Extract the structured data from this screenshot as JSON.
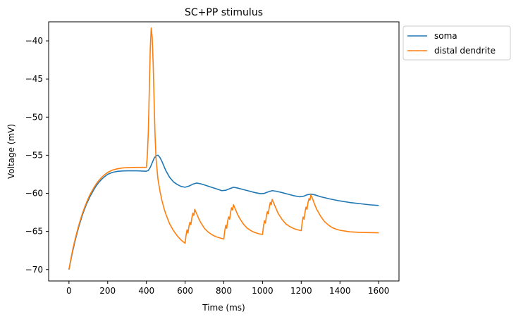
{
  "chart_data": {
    "type": "line",
    "title": "SC+PP stimulus",
    "xlabel": "Time (ms)",
    "ylabel": "Voltage (mV)",
    "xlim": [
      -105,
      1705
    ],
    "ylim": [
      -71.5,
      -37.5
    ],
    "xticks": [
      0,
      200,
      400,
      600,
      800,
      1000,
      1200,
      1400,
      1600
    ],
    "yticks": [
      -70,
      -65,
      -60,
      -55,
      -50,
      -45,
      -40
    ],
    "grid": false,
    "legend_placement": "outside-top-right",
    "series": [
      {
        "name": "soma",
        "color": "#1f77b4",
        "points": [
          [
            0,
            -70.0
          ],
          [
            10,
            -68.7
          ],
          [
            20,
            -67.5
          ],
          [
            30,
            -66.4
          ],
          [
            40,
            -65.4
          ],
          [
            50,
            -64.45
          ],
          [
            60,
            -63.6
          ],
          [
            70,
            -62.8
          ],
          [
            80,
            -62.1
          ],
          [
            90,
            -61.45
          ],
          [
            100,
            -60.9
          ],
          [
            110,
            -60.35
          ],
          [
            120,
            -59.9
          ],
          [
            130,
            -59.45
          ],
          [
            140,
            -59.05
          ],
          [
            150,
            -58.7
          ],
          [
            160,
            -58.4
          ],
          [
            170,
            -58.13
          ],
          [
            180,
            -57.9
          ],
          [
            190,
            -57.7
          ],
          [
            200,
            -57.5
          ],
          [
            225,
            -57.25
          ],
          [
            250,
            -57.12
          ],
          [
            275,
            -57.07
          ],
          [
            300,
            -57.05
          ],
          [
            350,
            -57.05
          ],
          [
            380,
            -57.08
          ],
          [
            400,
            -57.1
          ],
          [
            410,
            -57.0
          ],
          [
            420,
            -56.6
          ],
          [
            430,
            -56.0
          ],
          [
            440,
            -55.4
          ],
          [
            450,
            -55.05
          ],
          [
            460,
            -55.0
          ],
          [
            470,
            -55.3
          ],
          [
            480,
            -55.8
          ],
          [
            490,
            -56.4
          ],
          [
            500,
            -57.0
          ],
          [
            520,
            -57.9
          ],
          [
            540,
            -58.5
          ],
          [
            560,
            -58.85
          ],
          [
            580,
            -59.1
          ],
          [
            600,
            -59.2
          ],
          [
            620,
            -59.05
          ],
          [
            640,
            -58.8
          ],
          [
            660,
            -58.65
          ],
          [
            680,
            -58.75
          ],
          [
            700,
            -58.9
          ],
          [
            730,
            -59.15
          ],
          [
            760,
            -59.4
          ],
          [
            790,
            -59.65
          ],
          [
            810,
            -59.6
          ],
          [
            830,
            -59.4
          ],
          [
            850,
            -59.2
          ],
          [
            870,
            -59.3
          ],
          [
            900,
            -59.5
          ],
          [
            930,
            -59.7
          ],
          [
            960,
            -59.9
          ],
          [
            990,
            -60.05
          ],
          [
            1010,
            -60.0
          ],
          [
            1030,
            -59.8
          ],
          [
            1050,
            -59.65
          ],
          [
            1070,
            -59.72
          ],
          [
            1100,
            -59.9
          ],
          [
            1130,
            -60.1
          ],
          [
            1160,
            -60.3
          ],
          [
            1190,
            -60.45
          ],
          [
            1210,
            -60.4
          ],
          [
            1230,
            -60.2
          ],
          [
            1250,
            -60.1
          ],
          [
            1270,
            -60.2
          ],
          [
            1300,
            -60.45
          ],
          [
            1350,
            -60.75
          ],
          [
            1400,
            -61.0
          ],
          [
            1450,
            -61.2
          ],
          [
            1500,
            -61.35
          ],
          [
            1550,
            -61.5
          ],
          [
            1600,
            -61.6
          ]
        ]
      },
      {
        "name": "distal dendrite",
        "color": "#ff7f0e",
        "points": [
          [
            0,
            -70.0
          ],
          [
            10,
            -68.6
          ],
          [
            20,
            -67.3
          ],
          [
            30,
            -66.2
          ],
          [
            40,
            -65.2
          ],
          [
            50,
            -64.25
          ],
          [
            60,
            -63.4
          ],
          [
            70,
            -62.6
          ],
          [
            80,
            -61.9
          ],
          [
            90,
            -61.25
          ],
          [
            100,
            -60.65
          ],
          [
            110,
            -60.1
          ],
          [
            120,
            -59.65
          ],
          [
            130,
            -59.2
          ],
          [
            140,
            -58.8
          ],
          [
            150,
            -58.45
          ],
          [
            160,
            -58.15
          ],
          [
            170,
            -57.88
          ],
          [
            180,
            -57.65
          ],
          [
            190,
            -57.45
          ],
          [
            200,
            -57.25
          ],
          [
            225,
            -56.95
          ],
          [
            250,
            -56.78
          ],
          [
            275,
            -56.68
          ],
          [
            300,
            -56.63
          ],
          [
            350,
            -56.6
          ],
          [
            390,
            -56.6
          ],
          [
            400,
            -56.6
          ],
          [
            405,
            -55.0
          ],
          [
            410,
            -52.0
          ],
          [
            415,
            -46.5
          ],
          [
            420,
            -41.0
          ],
          [
            425,
            -38.3
          ],
          [
            430,
            -39.5
          ],
          [
            435,
            -43.0
          ],
          [
            440,
            -48.0
          ],
          [
            445,
            -52.5
          ],
          [
            450,
            -55.5
          ],
          [
            460,
            -58.2
          ],
          [
            470,
            -59.7
          ],
          [
            480,
            -60.9
          ],
          [
            490,
            -61.9
          ],
          [
            500,
            -62.7
          ],
          [
            520,
            -64.0
          ],
          [
            540,
            -64.9
          ],
          [
            560,
            -65.6
          ],
          [
            580,
            -66.15
          ],
          [
            600,
            -66.55
          ],
          [
            605,
            -65.5
          ],
          [
            610,
            -64.8
          ],
          [
            615,
            -65.2
          ],
          [
            620,
            -64.3
          ],
          [
            625,
            -63.8
          ],
          [
            630,
            -64.1
          ],
          [
            635,
            -63.2
          ],
          [
            640,
            -62.6
          ],
          [
            645,
            -62.9
          ],
          [
            650,
            -62.1
          ],
          [
            660,
            -62.7
          ],
          [
            670,
            -63.3
          ],
          [
            680,
            -63.8
          ],
          [
            700,
            -64.6
          ],
          [
            720,
            -65.1
          ],
          [
            740,
            -65.45
          ],
          [
            760,
            -65.7
          ],
          [
            780,
            -65.85
          ],
          [
            800,
            -66.0
          ],
          [
            805,
            -64.9
          ],
          [
            810,
            -64.2
          ],
          [
            815,
            -64.6
          ],
          [
            820,
            -63.6
          ],
          [
            825,
            -63.1
          ],
          [
            830,
            -63.4
          ],
          [
            835,
            -62.5
          ],
          [
            840,
            -61.9
          ],
          [
            845,
            -62.2
          ],
          [
            850,
            -61.5
          ],
          [
            860,
            -62.1
          ],
          [
            870,
            -62.7
          ],
          [
            880,
            -63.2
          ],
          [
            900,
            -64.0
          ],
          [
            920,
            -64.55
          ],
          [
            940,
            -64.9
          ],
          [
            960,
            -65.15
          ],
          [
            980,
            -65.3
          ],
          [
            1000,
            -65.4
          ],
          [
            1005,
            -64.3
          ],
          [
            1010,
            -63.6
          ],
          [
            1015,
            -63.9
          ],
          [
            1020,
            -63.0
          ],
          [
            1025,
            -62.4
          ],
          [
            1030,
            -62.7
          ],
          [
            1035,
            -61.8
          ],
          [
            1040,
            -61.2
          ],
          [
            1045,
            -61.5
          ],
          [
            1050,
            -60.8
          ],
          [
            1060,
            -61.4
          ],
          [
            1070,
            -62.0
          ],
          [
            1080,
            -62.6
          ],
          [
            1100,
            -63.4
          ],
          [
            1120,
            -64.0
          ],
          [
            1140,
            -64.35
          ],
          [
            1160,
            -64.6
          ],
          [
            1180,
            -64.78
          ],
          [
            1200,
            -64.9
          ],
          [
            1205,
            -63.8
          ],
          [
            1210,
            -63.1
          ],
          [
            1215,
            -63.4
          ],
          [
            1220,
            -62.4
          ],
          [
            1225,
            -61.8
          ],
          [
            1230,
            -62.1
          ],
          [
            1235,
            -61.2
          ],
          [
            1240,
            -60.7
          ],
          [
            1245,
            -60.9
          ],
          [
            1250,
            -60.2
          ],
          [
            1260,
            -60.8
          ],
          [
            1270,
            -61.5
          ],
          [
            1280,
            -62.1
          ],
          [
            1300,
            -63.0
          ],
          [
            1320,
            -63.7
          ],
          [
            1340,
            -64.15
          ],
          [
            1360,
            -64.5
          ],
          [
            1380,
            -64.7
          ],
          [
            1400,
            -64.85
          ],
          [
            1450,
            -65.05
          ],
          [
            1500,
            -65.12
          ],
          [
            1550,
            -65.15
          ],
          [
            1600,
            -65.18
          ]
        ]
      }
    ]
  }
}
